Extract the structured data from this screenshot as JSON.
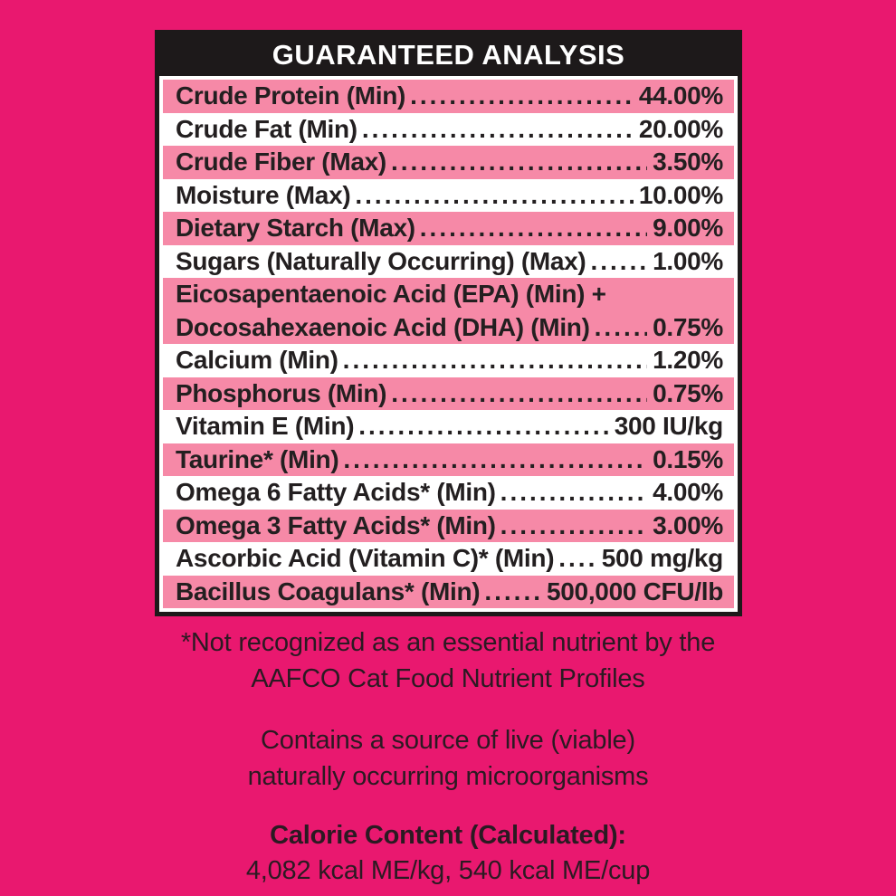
{
  "colors": {
    "bg": "#e9186f",
    "row_pink": "#f689a7",
    "row_white": "#ffffff",
    "table_black": "#1d191a",
    "table_text": "#231f20",
    "header_text": "#ffffff",
    "footer_text": "#2b1a22"
  },
  "guaranteed_analysis": {
    "title": "GUARANTEED ANALYSIS",
    "rows": [
      {
        "label": "Crude Protein (Min)",
        "value": "44.00%"
      },
      {
        "label": "Crude Fat (Min)",
        "value": "20.00%"
      },
      {
        "label": "Crude Fiber (Max)",
        "value": "3.50%"
      },
      {
        "label": "Moisture (Max)",
        "value": "10.00%"
      },
      {
        "label": "Dietary Starch (Max)",
        "value": "9.00%"
      },
      {
        "label": "Sugars (Naturally Occurring) (Max)",
        "value": "1.00%"
      },
      {
        "label": "Eicosapentaenoic Acid (EPA) (Min) +",
        "label2": "Docosahexaenoic Acid (DHA) (Min)",
        "value": "0.75%"
      },
      {
        "label": "Calcium (Min)",
        "value": "1.20%"
      },
      {
        "label": "Phosphorus (Min)",
        "value": "0.75%"
      },
      {
        "label": "Vitamin E (Min)",
        "value": "300 IU/kg"
      },
      {
        "label": "Taurine* (Min)",
        "value": "0.15%"
      },
      {
        "label": "Omega 6 Fatty Acids* (Min)",
        "value": "4.00%"
      },
      {
        "label": "Omega 3 Fatty Acids* (Min)",
        "value": "3.00%"
      },
      {
        "label": "Ascorbic Acid (Vitamin C)* (Min)",
        "value": "500 mg/kg"
      },
      {
        "label": "Bacillus Coagulans* (Min)",
        "value": "500,000 CFU/lb"
      }
    ]
  },
  "footnotes": {
    "asterisk_note_line1": "*Not recognized as an essential nutrient by the",
    "asterisk_note_line2": "AAFCO Cat Food Nutrient Profiles",
    "microorganisms_line1": "Contains a source of live (viable)",
    "microorganisms_line2": "naturally occurring microorganisms"
  },
  "calorie_content": {
    "heading": "Calorie Content (Calculated):",
    "value": "4,082 kcal ME/kg, 540 kcal ME/cup"
  }
}
